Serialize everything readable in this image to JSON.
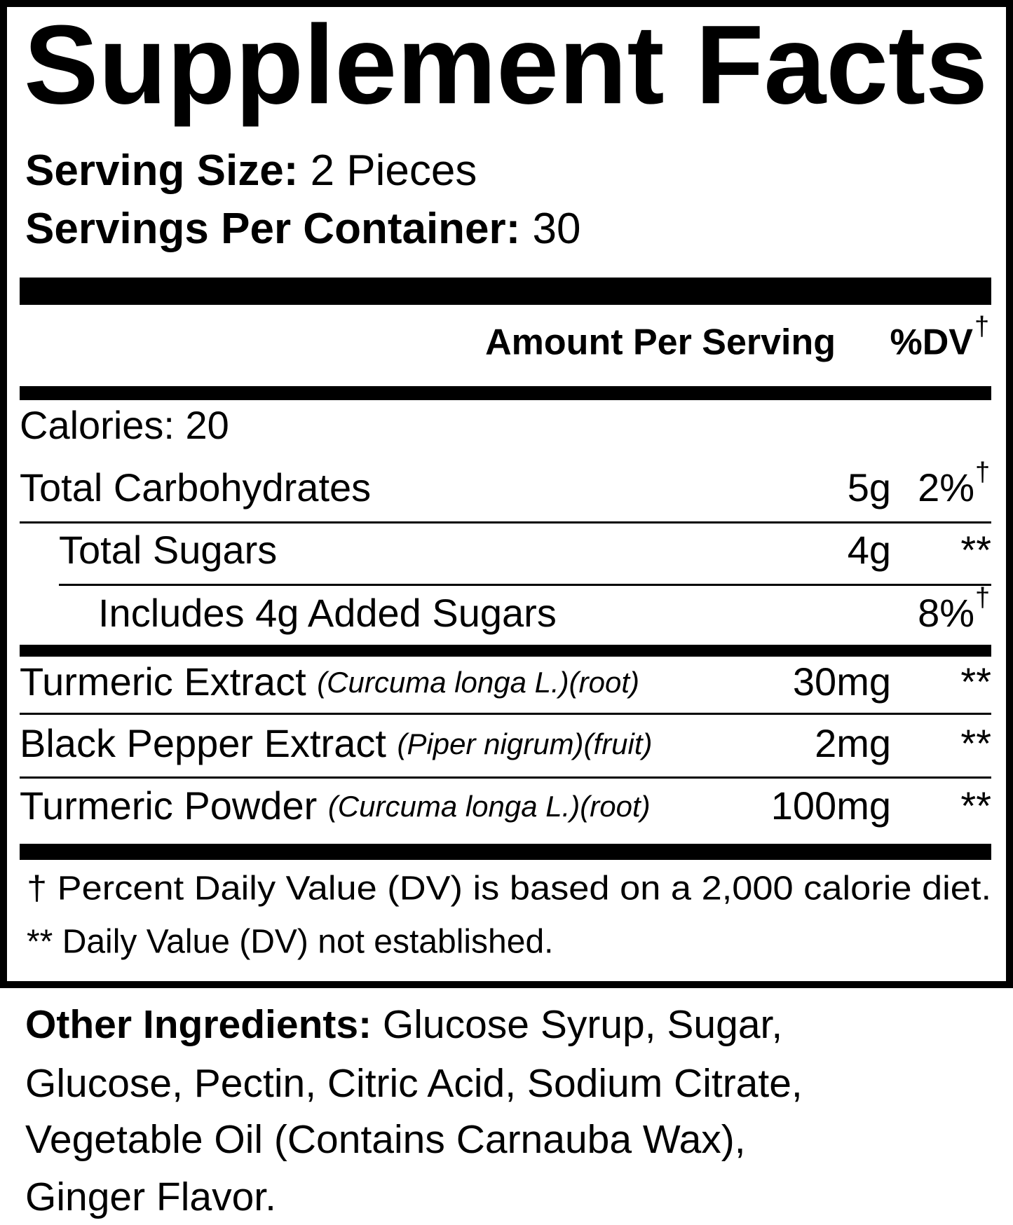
{
  "title": "Supplement Facts",
  "serving_size": {
    "label": "Serving Size:",
    "value": "2 Pieces"
  },
  "servings_per_container": {
    "label": "Servings Per Container:",
    "value": "30"
  },
  "header": {
    "amount": "Amount Per Serving",
    "dv": "%DV",
    "dv_mark": "†"
  },
  "rows": [
    {
      "name": "Calories: 20"
    },
    {
      "name": "Total Carbohydrates",
      "amount": "5g",
      "dv": "2%",
      "dv_mark": "†"
    },
    {
      "name": "Total Sugars",
      "amount": "4g",
      "dv": "**"
    },
    {
      "name": "Includes 4g Added Sugars",
      "dv": "8%",
      "dv_mark": "†"
    },
    {
      "name": "Turmeric Extract",
      "qualifier": "(Curcuma longa L.)(root)",
      "amount": "30mg",
      "dv": "**"
    },
    {
      "name": "Black Pepper Extract",
      "qualifier": "(Piper nigrum)(fruit)",
      "amount": "2mg",
      "dv": "**"
    },
    {
      "name": "Turmeric Powder",
      "qualifier": "(Curcuma longa L.)(root)",
      "amount": "100mg",
      "dv": "**"
    }
  ],
  "footnotes": [
    "† Percent Daily Value (DV) is based on a 2,000 calorie diet.",
    "** Daily Value (DV) not established."
  ],
  "other_ingredients": {
    "label": "Other Ingredients:",
    "lines": [
      "Glucose Syrup, Sugar,",
      "Glucose, Pectin, Citric Acid, Sodium Citrate,",
      "Vegetable Oil (Contains Carnauba Wax),",
      "Ginger Flavor."
    ]
  }
}
